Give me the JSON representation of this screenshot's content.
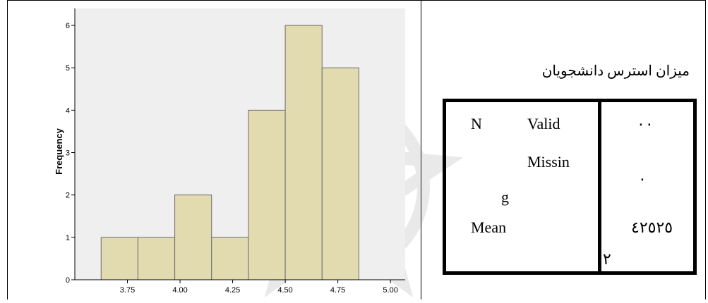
{
  "chart_data": {
    "type": "bar",
    "histogram": true,
    "categories": [
      "3.75",
      "4.00",
      "4.25",
      "4.50",
      "4.75",
      "5.00"
    ],
    "bins": [
      {
        "from": 3.625,
        "to": 3.8,
        "count": 1
      },
      {
        "from": 3.8,
        "to": 3.975,
        "count": 1
      },
      {
        "from": 3.975,
        "to": 4.15,
        "count": 2
      },
      {
        "from": 4.15,
        "to": 4.325,
        "count": 1
      },
      {
        "from": 4.325,
        "to": 4.5,
        "count": 4
      },
      {
        "from": 4.5,
        "to": 4.675,
        "count": 6
      },
      {
        "from": 4.675,
        "to": 4.85,
        "count": 5
      }
    ],
    "x_ticks": [
      3.75,
      4.0,
      4.25,
      4.5,
      4.75,
      5.0
    ],
    "x_tick_labels": [
      "3.75",
      "4.00",
      "4.25",
      "4.50",
      "4.75",
      "5.00"
    ],
    "y_ticks": [
      0,
      1,
      2,
      3,
      4,
      5,
      6
    ],
    "xlim": [
      3.5,
      5.07
    ],
    "ylim": [
      0,
      6.4
    ],
    "xlabel": "",
    "ylabel": "Frequency",
    "title": "",
    "bar_color": "#e2dbb0",
    "bar_edge": "#6b6b6b",
    "plot_bg": "#efefef",
    "grid": false
  },
  "stats": {
    "title": "میزان استرس دانشجویان",
    "n_label": "N",
    "valid_label": "Valid",
    "missing_label_part1": "Missin",
    "missing_label_part2": "g",
    "mean_label": "Mean",
    "valid_value": "۰۰",
    "missing_value": "۰",
    "mean_value": "٤٢٥٢٥",
    "mean_value_suffix": "۲"
  }
}
